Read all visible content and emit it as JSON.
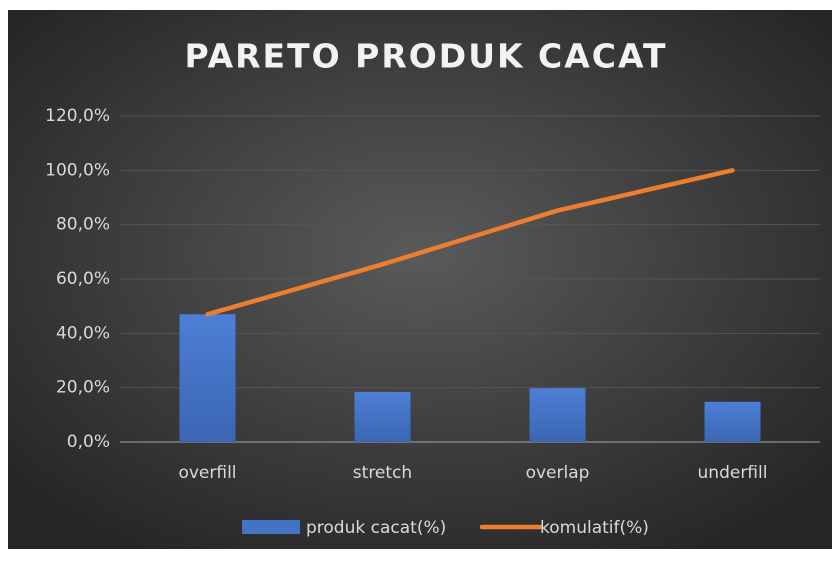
{
  "chart_data": {
    "type": "pareto",
    "title": "PARETO PRODUK CACAT",
    "categories": [
      "overfill",
      "stretch",
      "overlap",
      "underfill"
    ],
    "series": [
      {
        "name": "produk cacat(%)",
        "type": "bar",
        "color": "#4472c4",
        "values": [
          47.0,
          18.4,
          19.8,
          14.8
        ]
      },
      {
        "name": "komulatif(%)",
        "type": "line",
        "color": "#ed7d31",
        "values": [
          47.0,
          65.4,
          85.2,
          100.0
        ]
      }
    ],
    "ylim": [
      0,
      120
    ],
    "yticks": [
      {
        "value": 0,
        "label": "0,0%"
      },
      {
        "value": 20,
        "label": "20,0%"
      },
      {
        "value": 40,
        "label": "40,0%"
      },
      {
        "value": 60,
        "label": "60,0%"
      },
      {
        "value": 80,
        "label": "80,0%"
      },
      {
        "value": 100,
        "label": "100,0%"
      },
      {
        "value": 120,
        "label": "120,0%"
      }
    ],
    "grid": true,
    "legend": "bottom"
  }
}
